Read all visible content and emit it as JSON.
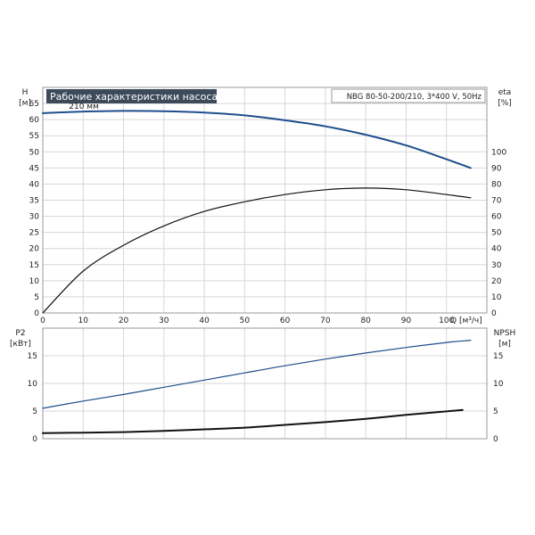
{
  "chart_data": [
    {
      "type": "line",
      "title": "Рабочие характеристики насоса",
      "model_label": "NBG 80-50-200/210, 3*400 V, 50Hz",
      "xlabel": "Q [м³/ч]",
      "xlim": [
        0,
        110
      ],
      "x_ticks": [
        0,
        10,
        20,
        30,
        40,
        50,
        60,
        70,
        80,
        90,
        100
      ],
      "y_left": {
        "label": "H",
        "unit": "[м]",
        "lim": [
          0,
          70
        ],
        "ticks": [
          0,
          5,
          10,
          15,
          20,
          25,
          30,
          35,
          40,
          45,
          50,
          55,
          60,
          65
        ]
      },
      "y_right": {
        "label": "eta",
        "unit": "[%]",
        "lim": [
          0,
          140
        ],
        "ticks": [
          0,
          10,
          20,
          30,
          40,
          50,
          60,
          70,
          80,
          90,
          100
        ]
      },
      "grid": true,
      "annotations": [
        {
          "text": "210 мм",
          "x": 10,
          "y": 62.3
        }
      ],
      "series": [
        {
          "axis": "left",
          "color": "#1f4e8c",
          "x": [
            0,
            10,
            20,
            30,
            40,
            50,
            60,
            70,
            80,
            90,
            100,
            106
          ],
          "y": [
            62.0,
            62.5,
            62.7,
            62.6,
            62.2,
            61.3,
            59.8,
            57.9,
            55.3,
            52.0,
            47.7,
            45.0
          ]
        },
        {
          "axis": "right",
          "color": "#111111",
          "x": [
            0,
            10,
            20,
            30,
            40,
            50,
            60,
            70,
            80,
            90,
            100,
            106
          ],
          "y": [
            0,
            26,
            42,
            54,
            63,
            69,
            73.5,
            76.5,
            77.5,
            76.5,
            73.5,
            71.5
          ]
        }
      ]
    },
    {
      "type": "line",
      "xlim": [
        0,
        110
      ],
      "x_ticks": [
        10,
        20,
        30,
        40,
        50,
        60,
        70,
        80,
        90,
        100
      ],
      "y_left": {
        "label": "P2",
        "unit": "[кВт]",
        "lim": [
          0,
          20
        ],
        "ticks": [
          0,
          5,
          10,
          15
        ]
      },
      "y_right": {
        "label": "NPSH",
        "unit": "[м]",
        "lim": [
          0,
          20
        ],
        "ticks": [
          0,
          5,
          10,
          15
        ]
      },
      "grid": true,
      "series": [
        {
          "axis": "left",
          "color": "#1f4e8c",
          "x": [
            0,
            10,
            20,
            30,
            40,
            50,
            60,
            70,
            80,
            90,
            100,
            106
          ],
          "y": [
            5.5,
            6.8,
            8.0,
            9.3,
            10.6,
            11.9,
            13.2,
            14.4,
            15.5,
            16.5,
            17.4,
            17.8
          ]
        },
        {
          "axis": "right",
          "color": "#111111",
          "x": [
            0,
            10,
            20,
            30,
            40,
            50,
            60,
            70,
            80,
            90,
            104
          ],
          "y": [
            1.0,
            1.1,
            1.2,
            1.4,
            1.7,
            2.0,
            2.5,
            3.0,
            3.6,
            4.3,
            5.2
          ]
        }
      ]
    }
  ]
}
